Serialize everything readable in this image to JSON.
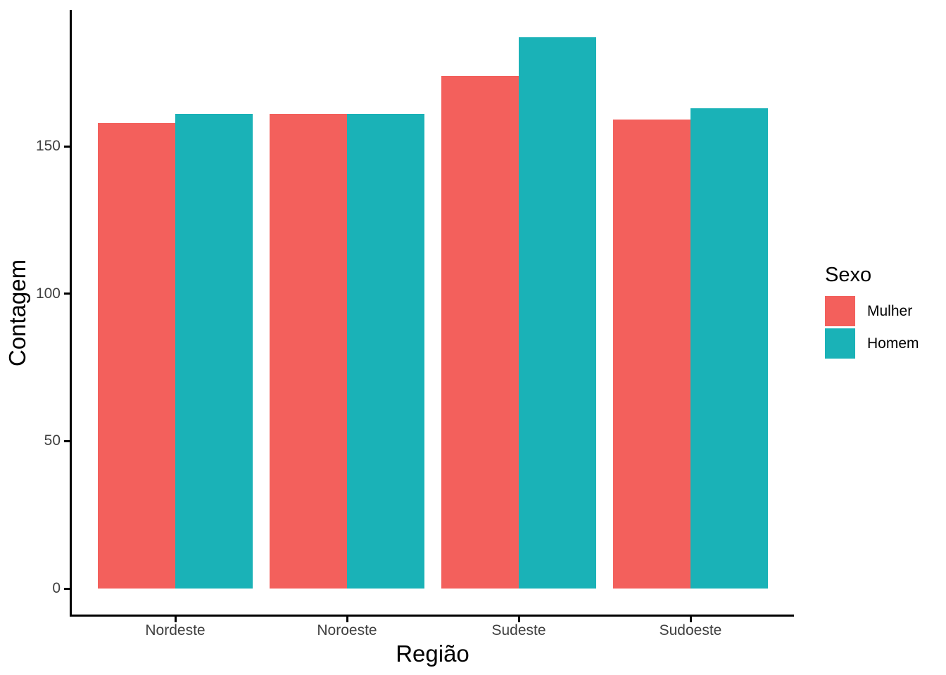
{
  "chart_data": {
    "type": "bar",
    "title": "",
    "xlabel": "Região",
    "ylabel": "Contagem",
    "legend_title": "Sexo",
    "legend_position": "right",
    "categories": [
      "Nordeste",
      "Noroeste",
      "Sudeste",
      "Sudoeste"
    ],
    "series": [
      {
        "name": "Mulher",
        "color": "#F3605C",
        "values": [
          158,
          161,
          174,
          159
        ]
      },
      {
        "name": "Homem",
        "color": "#1AB2B7",
        "values": [
          161,
          161,
          187,
          163
        ]
      }
    ],
    "y_ticks": [
      0,
      50,
      100,
      150
    ],
    "ylim": [
      0,
      196
    ],
    "grid": false,
    "style": {
      "axis_line_color": "#000000",
      "tick_label_color": "#3f3f3f",
      "background": "#ffffff"
    }
  }
}
